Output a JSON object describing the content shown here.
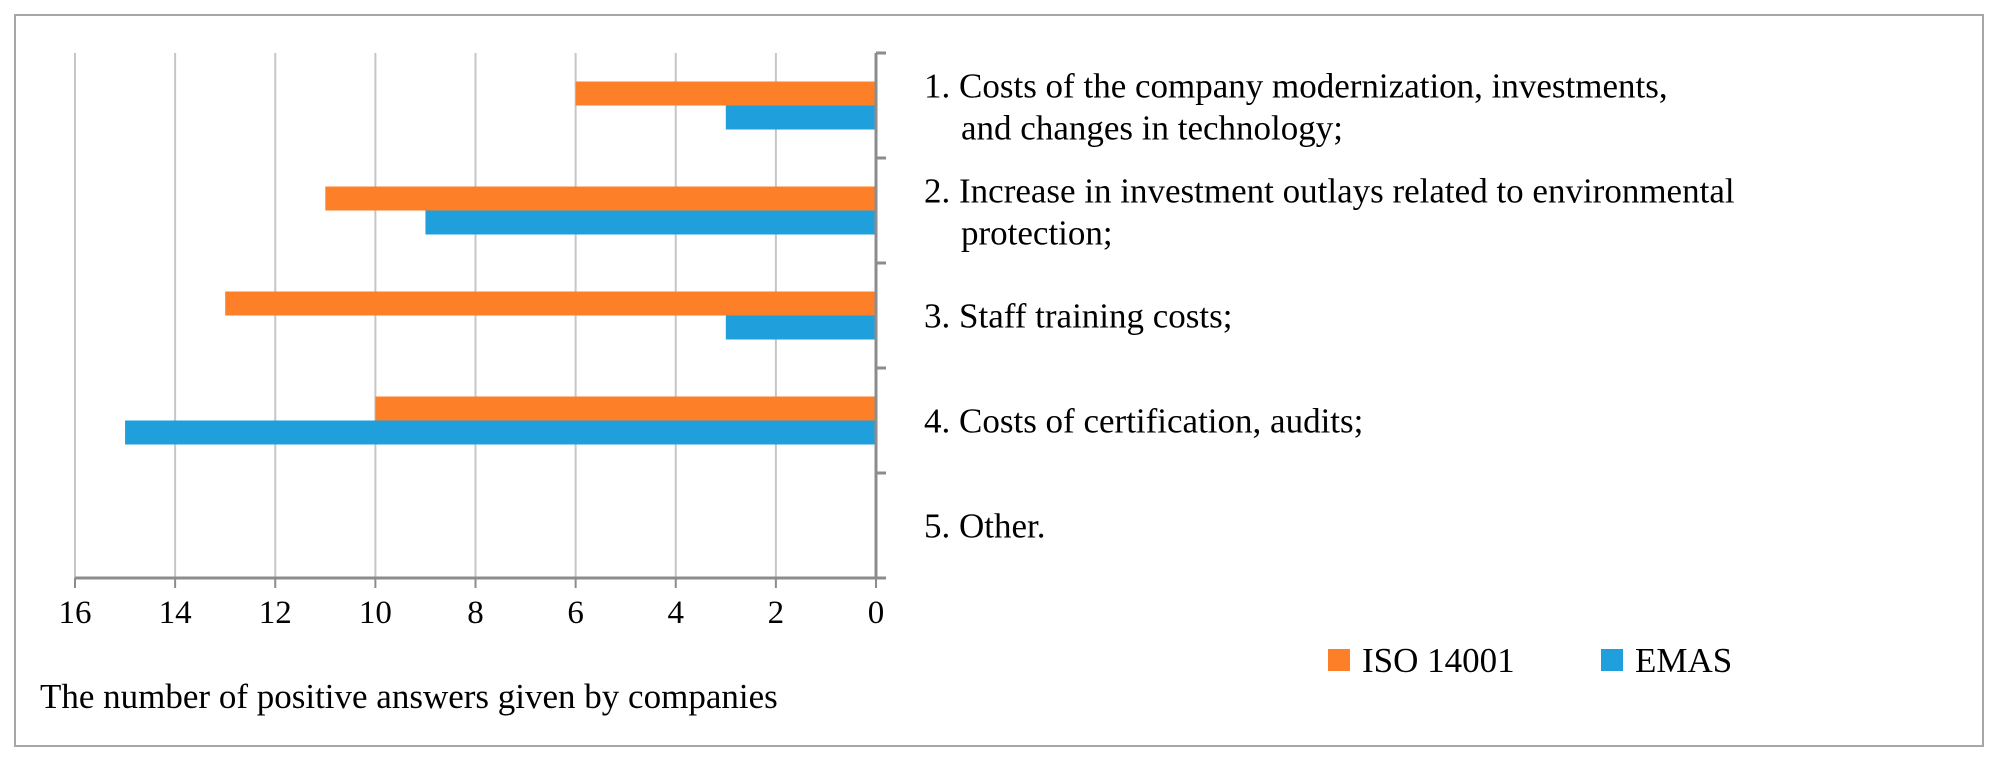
{
  "colors": {
    "iso": "#fd7f27",
    "emas": "#1f9fdc",
    "grid": "#c6c6c6",
    "axis": "#8c8c8c",
    "frame": "#a6a6a6"
  },
  "chart_data": {
    "type": "bar",
    "orientation": "horizontal",
    "x_reversed": true,
    "categories": [
      [
        "1. Costs of the company modernization, investments,",
        "and changes in technology;"
      ],
      [
        "2. Increase in investment outlays related to environmental",
        "protection;"
      ],
      [
        "3. Staff training costs;"
      ],
      [
        "4. Costs of certification, audits;"
      ],
      [
        "5. Other."
      ]
    ],
    "series": [
      {
        "name": "ISO 14001",
        "values": [
          6,
          11,
          13,
          10,
          0
        ]
      },
      {
        "name": "EMAS",
        "values": [
          3,
          9,
          3,
          15,
          0
        ]
      }
    ],
    "xlim": [
      0,
      16
    ],
    "xticks": [
      16,
      14,
      12,
      10,
      8,
      6,
      4,
      2,
      0
    ],
    "xlabel": "The number of positive answers given by companies",
    "legend_position": "bottom-right",
    "grid": true
  }
}
